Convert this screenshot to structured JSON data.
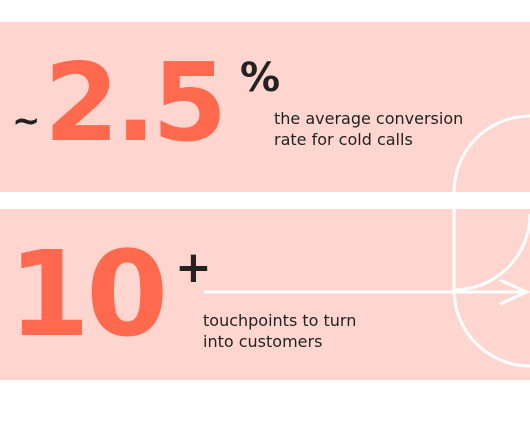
{
  "stats": [
    {
      "prefix": "~",
      "value": "2.5",
      "suffix": "%",
      "caption_line1": "the average conversion",
      "caption_line2": "rate for cold calls"
    },
    {
      "value": "10",
      "suffix": "+",
      "caption_line1": "touchpoints to turn",
      "caption_line2": "into customers"
    }
  ],
  "colors": {
    "panel_background": "#ffd6cf",
    "accent": "#ff6a4e",
    "text": "#222222",
    "decoration": "#ffffff"
  }
}
